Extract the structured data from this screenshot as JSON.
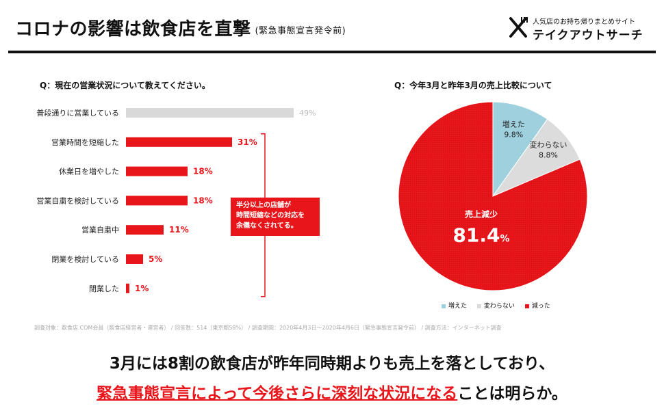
{
  "header": {
    "title": "コロナの影響は飲食店を直撃",
    "subtitle": "(緊急事態宣言発令前)",
    "logo_tagline": "人気店のお持ち帰りまとめサイト",
    "logo_name": "テイクアウトサーチ",
    "logo_icon": "fork-knife-icon"
  },
  "colors": {
    "accent": "#e8151b",
    "bar_grey": "#d9d9d9",
    "pie_blue": "#9fd0de",
    "pie_grey": "#dcdcdc"
  },
  "callout": {
    "lines": [
      "半分以上の店舗が",
      "時間短縮などの対応を",
      "余儀なくされてる。"
    ]
  },
  "chart_data": [
    {
      "type": "bar",
      "title": "Q：現在の営業状況について教えてください。",
      "orientation": "horizontal",
      "categories": [
        "普段通りに営業している",
        "営業時間を短縮した",
        "休業日を増やした",
        "営業自粛を検討している",
        "営業自粛中",
        "閉業を検討している",
        "閉業した"
      ],
      "values": [
        49,
        31,
        18,
        18,
        11,
        5,
        1
      ],
      "value_labels": [
        "49%",
        "31%",
        "18%",
        "18%",
        "11%",
        "5%",
        "1%"
      ],
      "highlight": [
        false,
        true,
        true,
        true,
        true,
        true,
        true
      ],
      "xlim": [
        0,
        100
      ]
    },
    {
      "type": "pie",
      "title": "Q：今年3月と昨年3月の売上比較について",
      "slices": [
        {
          "name": "増えた",
          "value": 9.8,
          "label": "増えた",
          "value_label": "9.8%",
          "color": "#9fd0de"
        },
        {
          "name": "変わらない",
          "value": 8.8,
          "label": "変わらない",
          "value_label": "8.8%",
          "color": "#dcdcdc"
        },
        {
          "name": "減った",
          "value": 81.4,
          "label": "売上減少",
          "value_number": "81.4",
          "value_unit": "%",
          "color": "#e8151b"
        }
      ],
      "legend": [
        "増えた",
        "変わらない",
        "減った"
      ],
      "legend_position": "bottom"
    }
  ],
  "footnote": "調査対象：飲食店.COM会員（飲食店経営者・運営者） / 回答数：514（東京都58%） / 調査期間：2020年4月3日〜2020年4月6日（緊急事態宣言発令前） / 調査方法：インターネット調査",
  "bottom": {
    "line1": "3月には8割の飲食店が昨年同時期よりも売上を落としており、",
    "line2_highlight": "緊急事態宣言によって今後さらに深刻な状況になる",
    "line2_rest": "ことは明らか。"
  }
}
